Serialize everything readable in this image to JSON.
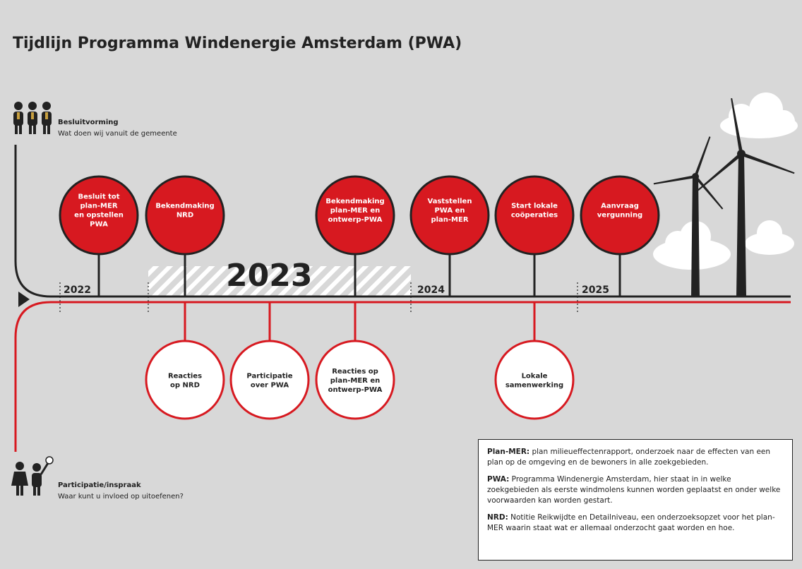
{
  "title": "Tijdlijn Programma Windenergie Amsterdam (PWA)",
  "decision_track": {
    "label": "Besluitvorming",
    "subtitle": "Wat doen wij vanuit de gemeente"
  },
  "participation_track": {
    "label": "Participatie/inspraak",
    "subtitle": "Waar kunt u invloed op uitoefenen?"
  },
  "years": [
    "2022",
    "2023",
    "2024",
    "2025"
  ],
  "decision_milestones": [
    {
      "lines": [
        "Besluit tot",
        "plan-MER",
        "en opstellen",
        "PWA"
      ]
    },
    {
      "lines": [
        "Bekendmaking",
        "NRD"
      ]
    },
    {
      "lines": [
        "Bekendmaking",
        "plan-MER en",
        "ontwerp-PWA"
      ]
    },
    {
      "lines": [
        "Vaststellen",
        "PWA en",
        "plan-MER"
      ]
    },
    {
      "lines": [
        "Start lokale",
        "coöperaties"
      ]
    },
    {
      "lines": [
        "Aanvraag",
        "vergunning"
      ]
    }
  ],
  "participation_milestones": [
    {
      "lines": [
        "Reacties",
        "op NRD"
      ]
    },
    {
      "lines": [
        "Participatie",
        "over PWA"
      ]
    },
    {
      "lines": [
        "Reacties op",
        "plan-MER en",
        "ontwerp-PWA"
      ]
    },
    {
      "lines": [
        "Lokale",
        "samenwerking"
      ]
    }
  ],
  "glossary": [
    {
      "term": "Plan-MER:",
      "text": "plan milieueffectenrapport, onderzoek naar de effecten van een plan op de omgeving en de bewoners in alle zoekgebieden."
    },
    {
      "term": "PWA:",
      "text": "Programma Windenergie Amsterdam, hier staat in in welke zoekgebieden als eerste windmolens kunnen worden geplaatst en onder welke voorwaarden kan worden gestart."
    },
    {
      "term": "NRD:",
      "text": "Notitie Reikwijdte en Detailniveau, een onderzoeksopzet voor het plan-MER waarin staat wat er allemaal onderzocht gaat worden en hoe."
    }
  ]
}
